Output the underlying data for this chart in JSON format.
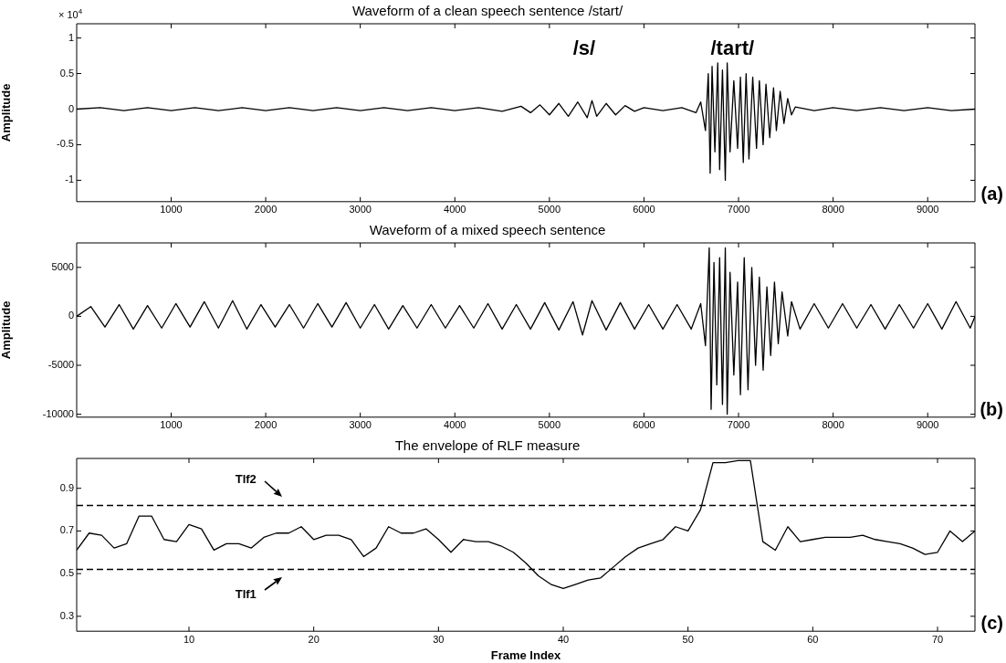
{
  "chart_data": [
    {
      "type": "line",
      "title": "Waveform of a clean speech sentence /start/",
      "ylabel": "Amplitude",
      "xlim": [
        1,
        9500
      ],
      "xticks": [
        1000,
        2000,
        3000,
        4000,
        5000,
        6000,
        7000,
        8000,
        9000
      ],
      "ylim": [
        -1.3,
        1.2
      ],
      "yticks": [
        -1,
        -0.5,
        0,
        0.5,
        1
      ],
      "marker": "none",
      "line_style": "solid",
      "legend": false,
      "annotations": [
        "× 10$^{4}$",
        "/s/",
        "/tart/",
        "(a)"
      ],
      "series": [
        {
          "color": "#000000",
          "x": [
            1,
            250,
            500,
            750,
            1000,
            1250,
            1500,
            1750,
            2000,
            2250,
            2500,
            2750,
            3000,
            3250,
            3500,
            3750,
            4000,
            4250,
            4500,
            4700,
            4800,
            4900,
            5000,
            5100,
            5200,
            5300,
            5400,
            5450,
            5500,
            5600,
            5700,
            5800,
            5900,
            6000,
            6200,
            6400,
            6550,
            6600,
            6650,
            6680,
            6700,
            6720,
            6750,
            6780,
            6800,
            6830,
            6860,
            6880,
            6910,
            6950,
            6990,
            7020,
            7050,
            7080,
            7110,
            7150,
            7190,
            7220,
            7260,
            7290,
            7330,
            7370,
            7400,
            7440,
            7480,
            7520,
            7560,
            7600,
            7800,
            8000,
            8250,
            8500,
            8750,
            9000,
            9250,
            9500
          ],
          "values": [
            0,
            0.02,
            -0.02,
            0.02,
            -0.02,
            0.02,
            -0.02,
            0.02,
            -0.02,
            0.02,
            -0.02,
            0.02,
            -0.02,
            0.02,
            -0.02,
            0.02,
            -0.02,
            0.02,
            -0.03,
            0.04,
            -0.05,
            0.06,
            -0.08,
            0.08,
            -0.1,
            0.1,
            -0.12,
            0.12,
            -0.1,
            0.08,
            -0.08,
            0.05,
            -0.03,
            0.02,
            -0.02,
            0.02,
            -0.05,
            0.1,
            -0.3,
            0.5,
            -0.9,
            0.6,
            -0.6,
            0.65,
            -0.85,
            0.55,
            -1.0,
            0.65,
            -0.6,
            0.4,
            -0.55,
            0.45,
            -0.75,
            0.5,
            -0.7,
            0.45,
            -0.55,
            0.4,
            -0.5,
            0.35,
            -0.4,
            0.3,
            -0.3,
            0.25,
            -0.2,
            0.15,
            -0.08,
            0.03,
            -0.02,
            0.02,
            -0.02,
            0.02,
            -0.02,
            0.02,
            -0.02,
            0
          ]
        }
      ]
    },
    {
      "type": "line",
      "title": "Waveform of a mixed speech sentence",
      "ylabel": "Amplitude",
      "xlim": [
        1,
        9500
      ],
      "xticks": [
        1000,
        2000,
        3000,
        4000,
        5000,
        6000,
        7000,
        8000,
        9000
      ],
      "ylim": [
        -10300,
        7500
      ],
      "yticks": [
        -10000,
        -5000,
        0,
        5000
      ],
      "marker": "none",
      "line_style": "solid",
      "legend": false,
      "annotations": [
        "(b)"
      ],
      "series": [
        {
          "color": "#000000",
          "x": [
            1,
            150,
            300,
            450,
            600,
            750,
            900,
            1050,
            1200,
            1350,
            1500,
            1650,
            1800,
            1950,
            2100,
            2250,
            2400,
            2550,
            2700,
            2850,
            3000,
            3150,
            3300,
            3450,
            3600,
            3750,
            3900,
            4050,
            4200,
            4350,
            4500,
            4650,
            4800,
            4950,
            5100,
            5250,
            5350,
            5450,
            5600,
            5750,
            5900,
            6050,
            6200,
            6350,
            6500,
            6600,
            6650,
            6690,
            6710,
            6740,
            6770,
            6800,
            6830,
            6860,
            6880,
            6910,
            6950,
            6990,
            7020,
            7060,
            7100,
            7140,
            7180,
            7220,
            7260,
            7300,
            7340,
            7380,
            7420,
            7460,
            7520,
            7560,
            7650,
            7800,
            7950,
            8100,
            8250,
            8400,
            8550,
            8700,
            8850,
            9000,
            9150,
            9300,
            9450,
            9500
          ],
          "values": [
            0,
            1000,
            -1100,
            1200,
            -1300,
            1100,
            -1200,
            1300,
            -1100,
            1500,
            -1200,
            1600,
            -1300,
            1200,
            -1100,
            1200,
            -1200,
            1300,
            -1100,
            1400,
            -1200,
            1200,
            -1300,
            1100,
            -1200,
            1200,
            -1200,
            1100,
            -1200,
            1300,
            -1300,
            1200,
            -1300,
            1400,
            -1400,
            1500,
            -1900,
            1600,
            -1400,
            1400,
            -1300,
            1200,
            -1300,
            1200,
            -1300,
            1300,
            -3000,
            7000,
            -9500,
            5500,
            -7000,
            6000,
            -9000,
            7000,
            -10000,
            4500,
            -6000,
            3500,
            -8000,
            6000,
            -7500,
            5000,
            -5000,
            4000,
            -5500,
            3000,
            -4000,
            3500,
            -2800,
            2500,
            -2000,
            1500,
            -1300,
            1300,
            -1200,
            1300,
            -1200,
            1200,
            -1300,
            1200,
            -1200,
            1300,
            -1300,
            1500,
            -1200,
            0
          ]
        }
      ]
    },
    {
      "type": "line",
      "title": "The envelope of RLF measure",
      "xlabel": "Frame Index",
      "xlim": [
        1,
        73
      ],
      "xticks": [
        10,
        20,
        30,
        40,
        50,
        60,
        70
      ],
      "ylim": [
        0.23,
        1.04
      ],
      "yticks": [
        0.3,
        0.5,
        0.7,
        0.9
      ],
      "marker": "none",
      "line_style": "solid",
      "legend": false,
      "annotations": [
        "(c)"
      ],
      "ref_lines": [
        {
          "axis": "y",
          "value": 0.82,
          "label": "Tlf2",
          "color": "#000000",
          "line_style": "dashed"
        },
        {
          "axis": "y",
          "value": 0.52,
          "label": "Tlf1",
          "color": "#000000",
          "line_style": "dashed"
        }
      ],
      "series": [
        {
          "color": "#000000",
          "x": [
            1,
            2,
            3,
            4,
            5,
            6,
            7,
            8,
            9,
            10,
            11,
            12,
            13,
            14,
            15,
            16,
            17,
            18,
            19,
            20,
            21,
            22,
            23,
            24,
            25,
            26,
            27,
            28,
            29,
            30,
            31,
            32,
            33,
            34,
            35,
            36,
            37,
            38,
            39,
            40,
            41,
            42,
            43,
            44,
            45,
            46,
            47,
            48,
            49,
            50,
            51,
            52,
            53,
            54,
            55,
            56,
            57,
            58,
            59,
            60,
            61,
            62,
            63,
            64,
            65,
            66,
            67,
            68,
            69,
            70,
            71,
            72,
            73
          ],
          "values": [
            0.61,
            0.69,
            0.68,
            0.62,
            0.64,
            0.77,
            0.77,
            0.66,
            0.65,
            0.73,
            0.71,
            0.61,
            0.64,
            0.64,
            0.62,
            0.67,
            0.69,
            0.69,
            0.72,
            0.66,
            0.68,
            0.68,
            0.66,
            0.58,
            0.62,
            0.72,
            0.69,
            0.69,
            0.71,
            0.66,
            0.6,
            0.66,
            0.65,
            0.65,
            0.63,
            0.6,
            0.55,
            0.49,
            0.45,
            0.43,
            0.45,
            0.47,
            0.48,
            0.53,
            0.58,
            0.62,
            0.64,
            0.66,
            0.72,
            0.7,
            0.8,
            1.02,
            1.02,
            1.03,
            1.03,
            0.65,
            0.61,
            0.72,
            0.65,
            0.66,
            0.67,
            0.67,
            0.67,
            0.68,
            0.66,
            0.65,
            0.64,
            0.62,
            0.59,
            0.6,
            0.7,
            0.65,
            0.7
          ]
        }
      ]
    }
  ]
}
